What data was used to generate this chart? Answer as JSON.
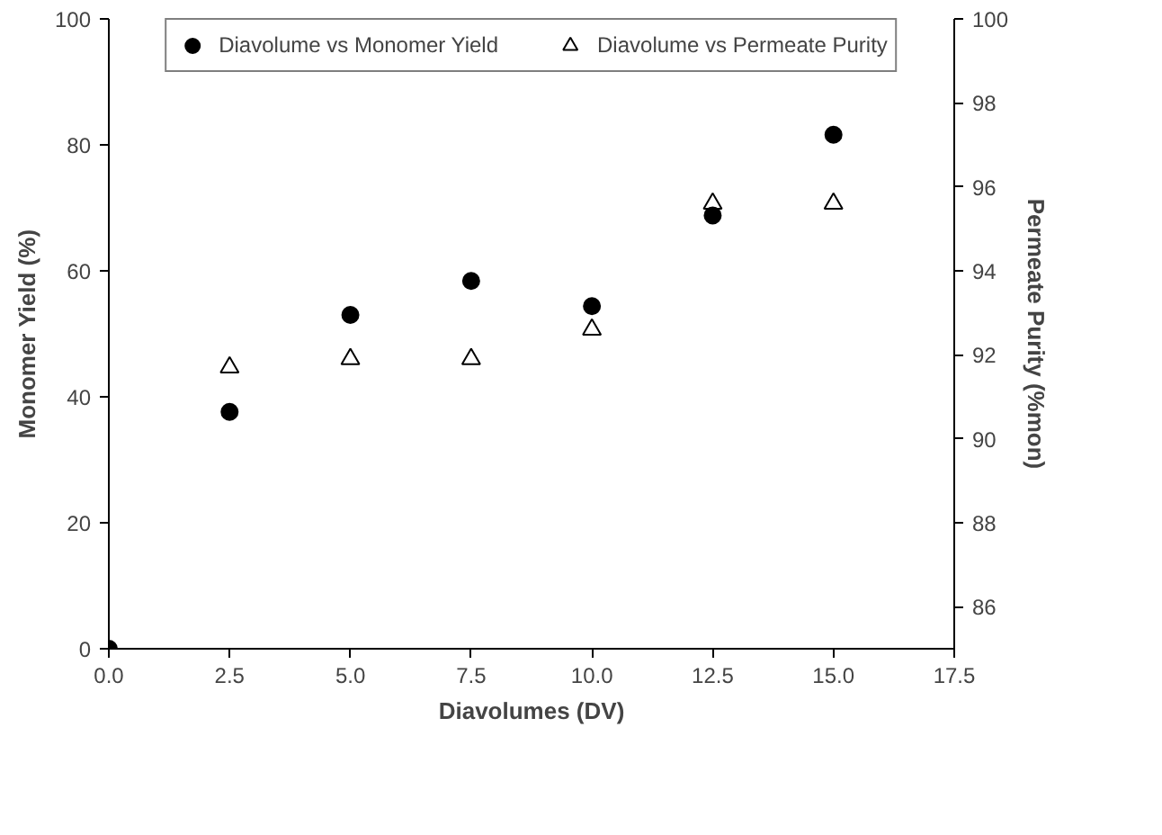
{
  "chart_data": {
    "type": "scatter",
    "xlabel": "Diavolumes (DV)",
    "ylabel": "Monomer Yield (%)",
    "y2label": "Permeate Purity (%mon)",
    "legend": "top",
    "grid": false,
    "xlim": [
      0,
      17.5
    ],
    "xticks": [
      {
        "value": 0,
        "label": "0.0"
      },
      {
        "value": 2.5,
        "label": "2.5"
      },
      {
        "value": 5,
        "label": "5.0"
      },
      {
        "value": 7.5,
        "label": "7.5"
      },
      {
        "value": 10,
        "label": "10.0"
      },
      {
        "value": 12.5,
        "label": "12.5"
      },
      {
        "value": 15,
        "label": "15.0"
      },
      {
        "value": 17.5,
        "label": "17.5"
      }
    ],
    "ylim": [
      0,
      100
    ],
    "yticks": [
      0,
      20,
      40,
      60,
      80,
      100
    ],
    "y2lim": [
      85,
      100
    ],
    "y2ticks": [
      86,
      88,
      90,
      92,
      94,
      96,
      98,
      100
    ],
    "series": [
      {
        "name": "Diavolume vs Monomer Yield",
        "color": "#000000",
        "marker": "circle",
        "x": [
          0,
          2.5,
          5,
          7.5,
          10,
          12.5,
          15
        ],
        "values": [
          0,
          37.6,
          53.0,
          58.4,
          54.4,
          68.8,
          81.6
        ]
      },
      {
        "name": "Diavolume vs Permeate Purity",
        "color": "#000000",
        "marker": "triangle",
        "axis": "y2",
        "x": [
          2.5,
          5,
          7.5,
          10,
          12.5,
          15
        ],
        "values": [
          91.7,
          91.9,
          91.9,
          92.6,
          95.6,
          95.6
        ]
      }
    ]
  }
}
